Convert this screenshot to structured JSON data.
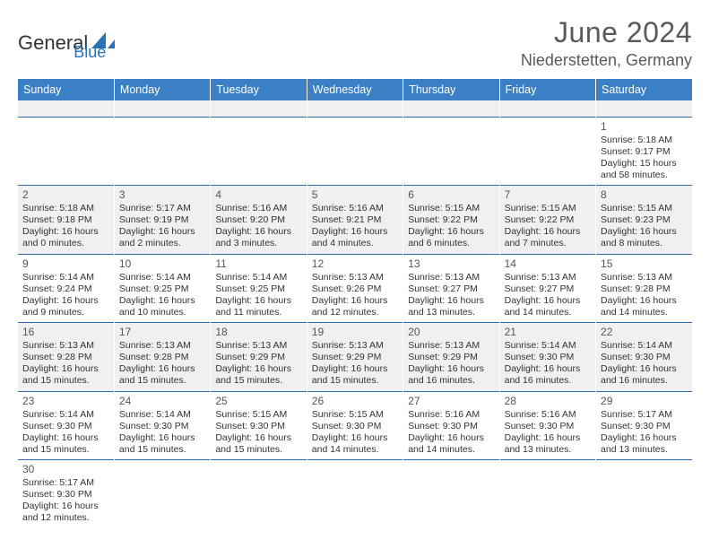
{
  "logo": {
    "part1": "General",
    "part2": "Blue"
  },
  "header": {
    "title": "June 2024",
    "location": "Niederstetten, Germany"
  },
  "colors": {
    "header_bg": "#3b7fc4",
    "header_text": "#ffffff",
    "row_border": "#2f6aaa",
    "alt_row_bg": "#eef0f2",
    "title_color": "#5a5a5a",
    "logo_blue": "#2a71b8"
  },
  "weekdays": [
    "Sunday",
    "Monday",
    "Tuesday",
    "Wednesday",
    "Thursday",
    "Friday",
    "Saturday"
  ],
  "weeks": [
    {
      "blank": true
    },
    {
      "cells": [
        null,
        null,
        null,
        null,
        null,
        null,
        {
          "day": "1",
          "sunrise": "Sunrise: 5:18 AM",
          "sunset": "Sunset: 9:17 PM",
          "daylight1": "Daylight: 15 hours",
          "daylight2": "and 58 minutes."
        }
      ]
    },
    {
      "cells": [
        {
          "day": "2",
          "sunrise": "Sunrise: 5:18 AM",
          "sunset": "Sunset: 9:18 PM",
          "daylight1": "Daylight: 16 hours",
          "daylight2": "and 0 minutes."
        },
        {
          "day": "3",
          "sunrise": "Sunrise: 5:17 AM",
          "sunset": "Sunset: 9:19 PM",
          "daylight1": "Daylight: 16 hours",
          "daylight2": "and 2 minutes."
        },
        {
          "day": "4",
          "sunrise": "Sunrise: 5:16 AM",
          "sunset": "Sunset: 9:20 PM",
          "daylight1": "Daylight: 16 hours",
          "daylight2": "and 3 minutes."
        },
        {
          "day": "5",
          "sunrise": "Sunrise: 5:16 AM",
          "sunset": "Sunset: 9:21 PM",
          "daylight1": "Daylight: 16 hours",
          "daylight2": "and 4 minutes."
        },
        {
          "day": "6",
          "sunrise": "Sunrise: 5:15 AM",
          "sunset": "Sunset: 9:22 PM",
          "daylight1": "Daylight: 16 hours",
          "daylight2": "and 6 minutes."
        },
        {
          "day": "7",
          "sunrise": "Sunrise: 5:15 AM",
          "sunset": "Sunset: 9:22 PM",
          "daylight1": "Daylight: 16 hours",
          "daylight2": "and 7 minutes."
        },
        {
          "day": "8",
          "sunrise": "Sunrise: 5:15 AM",
          "sunset": "Sunset: 9:23 PM",
          "daylight1": "Daylight: 16 hours",
          "daylight2": "and 8 minutes."
        }
      ]
    },
    {
      "cells": [
        {
          "day": "9",
          "sunrise": "Sunrise: 5:14 AM",
          "sunset": "Sunset: 9:24 PM",
          "daylight1": "Daylight: 16 hours",
          "daylight2": "and 9 minutes."
        },
        {
          "day": "10",
          "sunrise": "Sunrise: 5:14 AM",
          "sunset": "Sunset: 9:25 PM",
          "daylight1": "Daylight: 16 hours",
          "daylight2": "and 10 minutes."
        },
        {
          "day": "11",
          "sunrise": "Sunrise: 5:14 AM",
          "sunset": "Sunset: 9:25 PM",
          "daylight1": "Daylight: 16 hours",
          "daylight2": "and 11 minutes."
        },
        {
          "day": "12",
          "sunrise": "Sunrise: 5:13 AM",
          "sunset": "Sunset: 9:26 PM",
          "daylight1": "Daylight: 16 hours",
          "daylight2": "and 12 minutes."
        },
        {
          "day": "13",
          "sunrise": "Sunrise: 5:13 AM",
          "sunset": "Sunset: 9:27 PM",
          "daylight1": "Daylight: 16 hours",
          "daylight2": "and 13 minutes."
        },
        {
          "day": "14",
          "sunrise": "Sunrise: 5:13 AM",
          "sunset": "Sunset: 9:27 PM",
          "daylight1": "Daylight: 16 hours",
          "daylight2": "and 14 minutes."
        },
        {
          "day": "15",
          "sunrise": "Sunrise: 5:13 AM",
          "sunset": "Sunset: 9:28 PM",
          "daylight1": "Daylight: 16 hours",
          "daylight2": "and 14 minutes."
        }
      ]
    },
    {
      "cells": [
        {
          "day": "16",
          "sunrise": "Sunrise: 5:13 AM",
          "sunset": "Sunset: 9:28 PM",
          "daylight1": "Daylight: 16 hours",
          "daylight2": "and 15 minutes."
        },
        {
          "day": "17",
          "sunrise": "Sunrise: 5:13 AM",
          "sunset": "Sunset: 9:28 PM",
          "daylight1": "Daylight: 16 hours",
          "daylight2": "and 15 minutes."
        },
        {
          "day": "18",
          "sunrise": "Sunrise: 5:13 AM",
          "sunset": "Sunset: 9:29 PM",
          "daylight1": "Daylight: 16 hours",
          "daylight2": "and 15 minutes."
        },
        {
          "day": "19",
          "sunrise": "Sunrise: 5:13 AM",
          "sunset": "Sunset: 9:29 PM",
          "daylight1": "Daylight: 16 hours",
          "daylight2": "and 15 minutes."
        },
        {
          "day": "20",
          "sunrise": "Sunrise: 5:13 AM",
          "sunset": "Sunset: 9:29 PM",
          "daylight1": "Daylight: 16 hours",
          "daylight2": "and 16 minutes."
        },
        {
          "day": "21",
          "sunrise": "Sunrise: 5:14 AM",
          "sunset": "Sunset: 9:30 PM",
          "daylight1": "Daylight: 16 hours",
          "daylight2": "and 16 minutes."
        },
        {
          "day": "22",
          "sunrise": "Sunrise: 5:14 AM",
          "sunset": "Sunset: 9:30 PM",
          "daylight1": "Daylight: 16 hours",
          "daylight2": "and 16 minutes."
        }
      ]
    },
    {
      "cells": [
        {
          "day": "23",
          "sunrise": "Sunrise: 5:14 AM",
          "sunset": "Sunset: 9:30 PM",
          "daylight1": "Daylight: 16 hours",
          "daylight2": "and 15 minutes."
        },
        {
          "day": "24",
          "sunrise": "Sunrise: 5:14 AM",
          "sunset": "Sunset: 9:30 PM",
          "daylight1": "Daylight: 16 hours",
          "daylight2": "and 15 minutes."
        },
        {
          "day": "25",
          "sunrise": "Sunrise: 5:15 AM",
          "sunset": "Sunset: 9:30 PM",
          "daylight1": "Daylight: 16 hours",
          "daylight2": "and 15 minutes."
        },
        {
          "day": "26",
          "sunrise": "Sunrise: 5:15 AM",
          "sunset": "Sunset: 9:30 PM",
          "daylight1": "Daylight: 16 hours",
          "daylight2": "and 14 minutes."
        },
        {
          "day": "27",
          "sunrise": "Sunrise: 5:16 AM",
          "sunset": "Sunset: 9:30 PM",
          "daylight1": "Daylight: 16 hours",
          "daylight2": "and 14 minutes."
        },
        {
          "day": "28",
          "sunrise": "Sunrise: 5:16 AM",
          "sunset": "Sunset: 9:30 PM",
          "daylight1": "Daylight: 16 hours",
          "daylight2": "and 13 minutes."
        },
        {
          "day": "29",
          "sunrise": "Sunrise: 5:17 AM",
          "sunset": "Sunset: 9:30 PM",
          "daylight1": "Daylight: 16 hours",
          "daylight2": "and 13 minutes."
        }
      ]
    },
    {
      "last": true,
      "cells": [
        {
          "day": "30",
          "sunrise": "Sunrise: 5:17 AM",
          "sunset": "Sunset: 9:30 PM",
          "daylight1": "Daylight: 16 hours",
          "daylight2": "and 12 minutes."
        },
        null,
        null,
        null,
        null,
        null,
        null
      ]
    }
  ]
}
